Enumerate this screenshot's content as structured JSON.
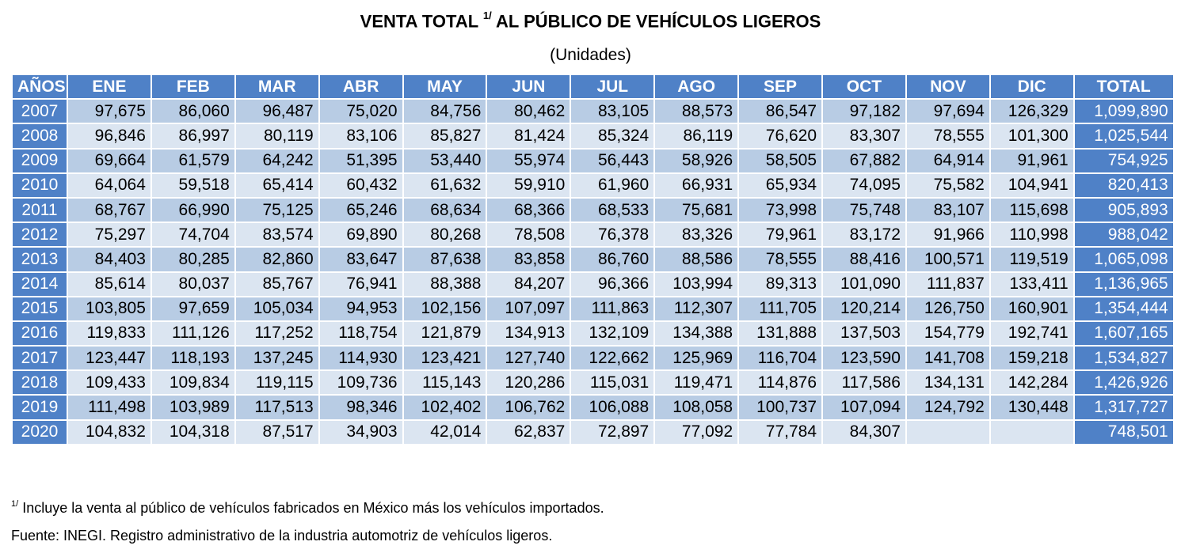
{
  "header": {
    "title_main": "VENTA TOTAL",
    "title_sup": "1/",
    "title_rest": "AL PÚBLICO DE VEHÍCULOS LIGEROS",
    "subtitle": "(Unidades)"
  },
  "table": {
    "columns": [
      "AÑOS",
      "ENE",
      "FEB",
      "MAR",
      "ABR",
      "MAY",
      "JUN",
      "JUL",
      "AGO",
      "SEP",
      "OCT",
      "NOV",
      "DIC",
      "TOTAL"
    ],
    "rows": [
      [
        "2007",
        "97,675",
        "86,060",
        "96,487",
        "75,020",
        "84,756",
        "80,462",
        "83,105",
        "88,573",
        "86,547",
        "97,182",
        "97,694",
        "126,329",
        "1,099,890"
      ],
      [
        "2008",
        "96,846",
        "86,997",
        "80,119",
        "83,106",
        "85,827",
        "81,424",
        "85,324",
        "86,119",
        "76,620",
        "83,307",
        "78,555",
        "101,300",
        "1,025,544"
      ],
      [
        "2009",
        "69,664",
        "61,579",
        "64,242",
        "51,395",
        "53,440",
        "55,974",
        "56,443",
        "58,926",
        "58,505",
        "67,882",
        "64,914",
        "91,961",
        "754,925"
      ],
      [
        "2010",
        "64,064",
        "59,518",
        "65,414",
        "60,432",
        "61,632",
        "59,910",
        "61,960",
        "66,931",
        "65,934",
        "74,095",
        "75,582",
        "104,941",
        "820,413"
      ],
      [
        "2011",
        "68,767",
        "66,990",
        "75,125",
        "65,246",
        "68,634",
        "68,366",
        "68,533",
        "75,681",
        "73,998",
        "75,748",
        "83,107",
        "115,698",
        "905,893"
      ],
      [
        "2012",
        "75,297",
        "74,704",
        "83,574",
        "69,890",
        "80,268",
        "78,508",
        "76,378",
        "83,326",
        "79,961",
        "83,172",
        "91,966",
        "110,998",
        "988,042"
      ],
      [
        "2013",
        "84,403",
        "80,285",
        "82,860",
        "83,647",
        "87,638",
        "83,858",
        "86,760",
        "88,586",
        "78,555",
        "88,416",
        "100,571",
        "119,519",
        "1,065,098"
      ],
      [
        "2014",
        "85,614",
        "80,037",
        "85,767",
        "76,941",
        "88,388",
        "84,207",
        "96,366",
        "103,994",
        "89,313",
        "101,090",
        "111,837",
        "133,411",
        "1,136,965"
      ],
      [
        "2015",
        "103,805",
        "97,659",
        "105,034",
        "94,953",
        "102,156",
        "107,097",
        "111,863",
        "112,307",
        "111,705",
        "120,214",
        "126,750",
        "160,901",
        "1,354,444"
      ],
      [
        "2016",
        "119,833",
        "111,126",
        "117,252",
        "118,754",
        "121,879",
        "134,913",
        "132,109",
        "134,388",
        "131,888",
        "137,503",
        "154,779",
        "192,741",
        "1,607,165"
      ],
      [
        "2017",
        "123,447",
        "118,193",
        "137,245",
        "114,930",
        "123,421",
        "127,740",
        "122,662",
        "125,969",
        "116,704",
        "123,590",
        "141,708",
        "159,218",
        "1,534,827"
      ],
      [
        "2018",
        "109,433",
        "109,834",
        "119,115",
        "109,736",
        "115,143",
        "120,286",
        "115,031",
        "119,471",
        "114,876",
        "117,586",
        "134,131",
        "142,284",
        "1,426,926"
      ],
      [
        "2019",
        "111,498",
        "103,989",
        "117,513",
        "98,346",
        "102,402",
        "106,762",
        "106,088",
        "108,058",
        "100,737",
        "107,094",
        "124,792",
        "130,448",
        "1,317,727"
      ],
      [
        "2020",
        "104,832",
        "104,318",
        "87,517",
        "34,903",
        "42,014",
        "62,837",
        "72,897",
        "77,092",
        "77,784",
        "84,307",
        "",
        "",
        "748,501"
      ]
    ]
  },
  "footer": {
    "note_sup": "1/",
    "note_text": "Incluye la venta al público de vehículos fabricados en México más los vehículos importados.",
    "source": "Fuente: INEGI. Registro administrativo de la industria automotriz de vehículos ligeros."
  }
}
